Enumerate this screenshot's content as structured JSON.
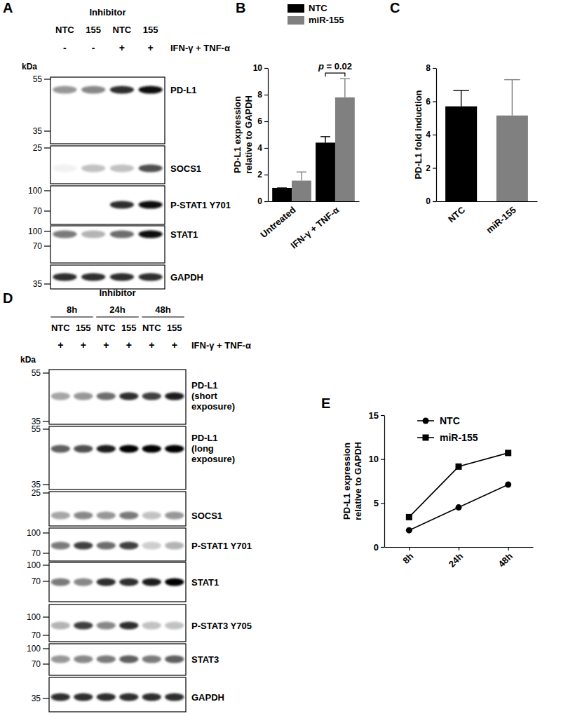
{
  "chart_data": [
    {
      "type": "blot",
      "panel": "A",
      "header": "Inhibitor",
      "lanes": [
        "NTC",
        "155",
        "NTC",
        "155"
      ],
      "treatment": {
        "label": "IFN-γ + TNF-α",
        "values": [
          "-",
          "-",
          "+",
          "+"
        ]
      },
      "kda_label": "kDa",
      "rows": [
        {
          "label": [
            "PD-L1"
          ],
          "markers": [
            55,
            35
          ],
          "intensity": [
            0.5,
            0.55,
            0.85,
            0.95
          ]
        },
        {
          "label": [
            "SOCS1"
          ],
          "markers": [
            25
          ],
          "intensity": [
            0.1,
            0.35,
            0.35,
            0.75
          ]
        },
        {
          "label": [
            "P-STAT1 Y701"
          ],
          "markers": [
            100,
            70
          ],
          "intensity": [
            0,
            0,
            0.85,
            0.95
          ]
        },
        {
          "label": [
            "STAT1"
          ],
          "markers": [
            100,
            70
          ],
          "intensity": [
            0.6,
            0.4,
            0.65,
            0.95
          ]
        },
        {
          "label": [
            "GAPDH"
          ],
          "markers": [
            35
          ],
          "intensity": [
            0.85,
            0.85,
            0.85,
            0.85
          ]
        }
      ]
    },
    {
      "type": "bar",
      "panel": "B",
      "y_label": [
        "PD-L1 expression",
        "relative to GAPDH"
      ],
      "categories": [
        "Untreated",
        "IFN-γ + TNF-α"
      ],
      "series": [
        {
          "name": "NTC",
          "color": "#000000",
          "values": [
            1,
            4.4
          ],
          "errors": [
            0,
            0.45
          ]
        },
        {
          "name": "miR-155",
          "color": "#808080",
          "values": [
            1.55,
            7.8
          ],
          "errors": [
            0.65,
            1.4
          ]
        }
      ],
      "ylim": [
        0,
        10
      ],
      "yticks": [
        0,
        2,
        4,
        6,
        8,
        10
      ],
      "legend": "top",
      "annotation": "p = 0.02"
    },
    {
      "type": "bar",
      "panel": "C",
      "y_label": [
        "PD-L1 fold induction"
      ],
      "categories": [
        "NTC",
        "miR-155"
      ],
      "values": [
        5.7,
        5.15
      ],
      "errors": [
        0.95,
        2.15
      ],
      "colors": [
        "#000000",
        "#808080"
      ],
      "ylim": [
        0,
        8
      ],
      "yticks": [
        0,
        2,
        4,
        6,
        8
      ]
    },
    {
      "type": "blot",
      "panel": "D",
      "header": "Inhibitor",
      "groups": [
        "8h",
        "24h",
        "48h"
      ],
      "lanes": [
        "NTC",
        "155",
        "NTC",
        "155",
        "NTC",
        "155"
      ],
      "treatment": {
        "label": "IFN-γ + TNF-α",
        "values": [
          "+",
          "+",
          "+",
          "+",
          "+",
          "+"
        ]
      },
      "kda_label": "kDa",
      "rows": [
        {
          "label": [
            "PD-L1",
            "(short",
            "exposure)"
          ],
          "markers": [
            55,
            35
          ],
          "intensity": [
            0.45,
            0.5,
            0.65,
            0.85,
            0.8,
            0.9
          ]
        },
        {
          "label": [
            "PD-L1",
            "(long",
            "exposure)"
          ],
          "markers": [
            55,
            35
          ],
          "intensity": [
            0.7,
            0.75,
            0.9,
            1,
            1,
            1
          ]
        },
        {
          "label": [
            "SOCS1"
          ],
          "markers": [
            25
          ],
          "intensity": [
            0.45,
            0.55,
            0.5,
            0.6,
            0.35,
            0.5
          ]
        },
        {
          "label": [
            "P-STAT1 Y701"
          ],
          "markers": [
            100,
            70
          ],
          "intensity": [
            0.6,
            0.8,
            0.65,
            0.8,
            0.3,
            0.4
          ]
        },
        {
          "label": [
            "STAT1"
          ],
          "markers": [
            100,
            70
          ],
          "intensity": [
            0.6,
            0.55,
            0.85,
            0.85,
            0.9,
            1
          ]
        },
        {
          "label": [
            "P-STAT3 Y705"
          ],
          "markers": [
            100,
            70
          ],
          "intensity": [
            0.4,
            0.8,
            0.55,
            0.85,
            0.35,
            0.35
          ]
        },
        {
          "label": [
            "STAT3"
          ],
          "markers": [
            100,
            70
          ],
          "intensity": [
            0.5,
            0.55,
            0.6,
            0.7,
            0.6,
            0.7
          ]
        },
        {
          "label": [
            "GAPDH"
          ],
          "markers": [
            35
          ],
          "intensity": [
            0.85,
            0.85,
            0.85,
            0.85,
            0.85,
            0.85
          ]
        }
      ]
    },
    {
      "type": "line",
      "panel": "E",
      "y_label": [
        "PD-L1 expression",
        "relative to GAPDH"
      ],
      "categories": [
        "8h",
        "24h",
        "48h"
      ],
      "series": [
        {
          "name": "NTC",
          "color": "#000000",
          "marker": "circle",
          "values": [
            1.9,
            4.5,
            7.1
          ]
        },
        {
          "name": "miR-155",
          "color": "#000000",
          "marker": "square",
          "values": [
            3.4,
            9.15,
            10.7
          ]
        }
      ],
      "ylim": [
        0,
        15
      ],
      "yticks": [
        0,
        5,
        10,
        15
      ],
      "legend": "top-right"
    }
  ]
}
